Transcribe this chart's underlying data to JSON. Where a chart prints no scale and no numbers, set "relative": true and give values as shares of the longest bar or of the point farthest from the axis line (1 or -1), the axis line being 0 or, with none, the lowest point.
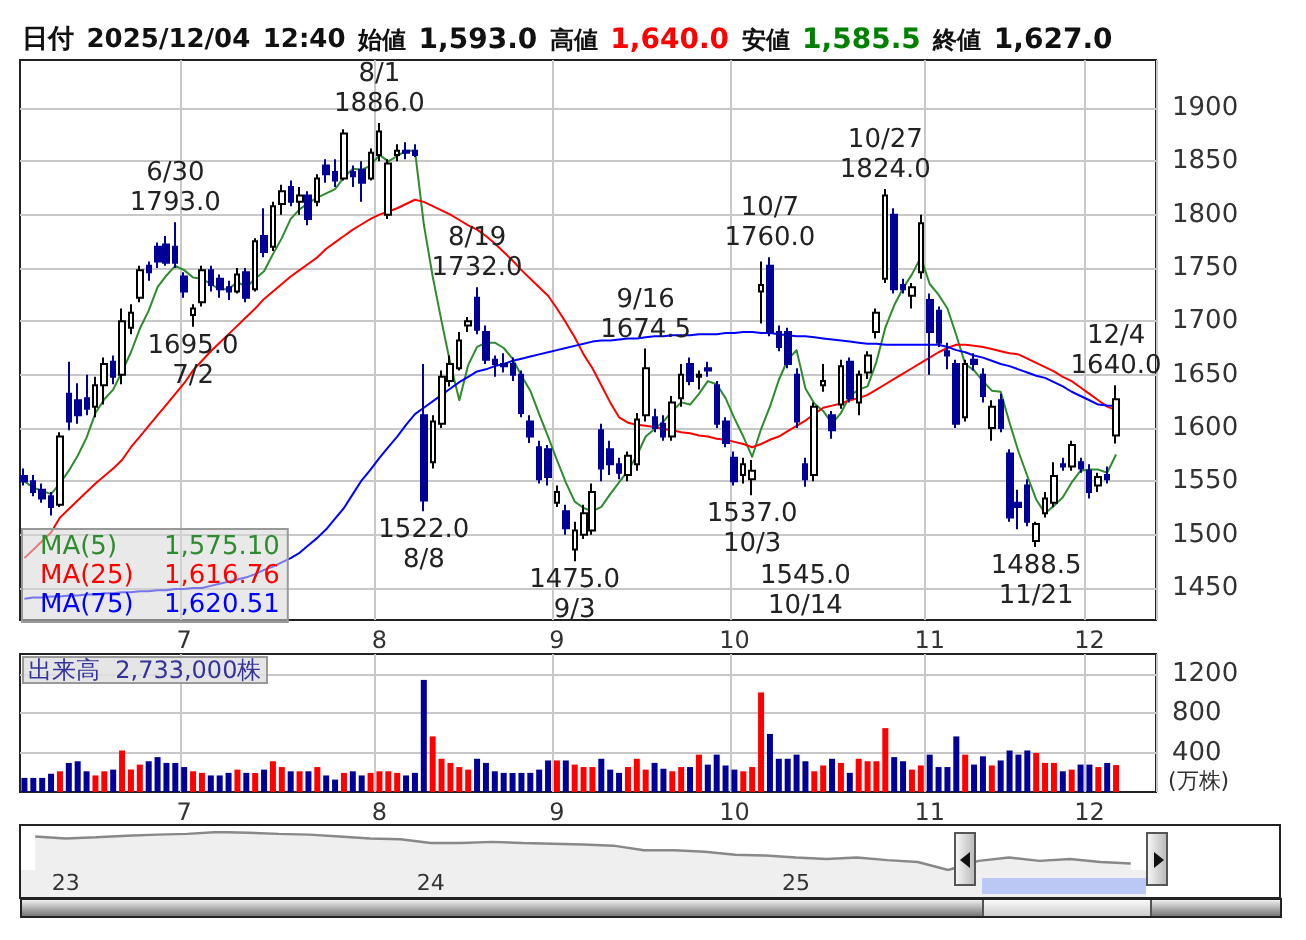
{
  "chart_data": [
    {
      "type": "candlestick",
      "title": "日付 2025/12/04 12:40 始値 1,593.0 高値 1,640.0 安値 1,585.5 終値 1,627.0",
      "categories": [
        null,
        null,
        null,
        null,
        null,
        null,
        null,
        null,
        null,
        null,
        null,
        null,
        null,
        null,
        null,
        null,
        null,
        null,
        "7",
        null,
        null,
        null,
        null,
        null,
        null,
        null,
        null,
        null,
        null,
        null,
        null,
        null,
        null,
        null,
        null,
        null,
        null,
        null,
        null,
        null,
        "8",
        null,
        null,
        null,
        null,
        null,
        null,
        null,
        null,
        null,
        null,
        null,
        null,
        null,
        null,
        null,
        null,
        null,
        null,
        null,
        "9",
        null,
        null,
        null,
        null,
        null,
        null,
        null,
        null,
        null,
        null,
        null,
        null,
        null,
        null,
        null,
        null,
        null,
        null,
        null,
        "10",
        null,
        null,
        null,
        null,
        null,
        null,
        null,
        null,
        null,
        null,
        null,
        null,
        null,
        null,
        null,
        null,
        null,
        null,
        null,
        null,
        null,
        "11",
        null,
        null,
        null,
        null,
        null,
        null,
        null,
        null,
        null,
        null,
        null,
        null,
        null,
        null,
        null,
        null,
        null,
        "12",
        null,
        null,
        null
      ],
      "ohlc": [
        [
          1555,
          1562,
          1546,
          1550
        ],
        [
          1550,
          1556,
          1536,
          1540
        ],
        [
          1542,
          1548,
          1530,
          1534
        ],
        [
          1536,
          1540,
          1518,
          1526
        ],
        [
          1528,
          1596,
          1526,
          1592
        ],
        [
          1632,
          1662,
          1598,
          1606
        ],
        [
          1626,
          1642,
          1604,
          1612
        ],
        [
          1628,
          1650,
          1612,
          1618
        ],
        [
          1620,
          1648,
          1610,
          1640
        ],
        [
          1640,
          1666,
          1622,
          1660
        ],
        [
          1662,
          1668,
          1641,
          1648
        ],
        [
          1650,
          1712,
          1641,
          1700
        ],
        [
          1694,
          1716,
          1688,
          1708
        ],
        [
          1722,
          1752,
          1718,
          1748
        ],
        [
          1752,
          1756,
          1738,
          1746
        ],
        [
          1770,
          1774,
          1750,
          1756
        ],
        [
          1772,
          1780,
          1752,
          1755
        ],
        [
          1770,
          1793,
          1750,
          1755
        ],
        [
          1742,
          1746,
          1722,
          1728
        ],
        [
          1706,
          1716,
          1695,
          1712
        ],
        [
          1718,
          1752,
          1714,
          1748
        ],
        [
          1748,
          1752,
          1728,
          1734
        ],
        [
          1740,
          1744,
          1722,
          1730
        ],
        [
          1732,
          1738,
          1720,
          1728
        ],
        [
          1728,
          1750,
          1726,
          1744
        ],
        [
          1746,
          1750,
          1718,
          1722
        ],
        [
          1730,
          1778,
          1728,
          1775
        ],
        [
          1780,
          1806,
          1760,
          1765
        ],
        [
          1770,
          1812,
          1766,
          1808
        ],
        [
          1810,
          1828,
          1800,
          1822
        ],
        [
          1826,
          1832,
          1808,
          1812
        ],
        [
          1812,
          1826,
          1800,
          1818
        ],
        [
          1818,
          1822,
          1790,
          1796
        ],
        [
          1812,
          1838,
          1808,
          1834
        ],
        [
          1846,
          1852,
          1830,
          1838
        ],
        [
          1840,
          1852,
          1826,
          1832
        ],
        [
          1834,
          1880,
          1832,
          1876
        ],
        [
          1840,
          1846,
          1826,
          1836
        ],
        [
          1842,
          1850,
          1812,
          1830
        ],
        [
          1834,
          1862,
          1832,
          1858
        ],
        [
          1856,
          1886,
          1850,
          1878
        ],
        [
          1800,
          1852,
          1796,
          1848
        ],
        [
          1856,
          1866,
          1850,
          1860
        ],
        [
          1860,
          1868,
          1852,
          1858
        ],
        [
          1860,
          1866,
          1854,
          1856
        ],
        [
          1612,
          1660,
          1522,
          1532
        ],
        [
          1568,
          1612,
          1562,
          1606
        ],
        [
          1604,
          1654,
          1600,
          1648
        ],
        [
          1644,
          1668,
          1639,
          1660
        ],
        [
          1656,
          1690,
          1654,
          1682
        ],
        [
          1696,
          1704,
          1690,
          1700
        ],
        [
          1722,
          1732,
          1688,
          1692
        ],
        [
          1690,
          1696,
          1660,
          1664
        ],
        [
          1664,
          1668,
          1648,
          1660
        ],
        [
          1660,
          1670,
          1652,
          1658
        ],
        [
          1660,
          1666,
          1644,
          1650
        ],
        [
          1650,
          1654,
          1610,
          1614
        ],
        [
          1606,
          1612,
          1586,
          1592
        ],
        [
          1582,
          1588,
          1548,
          1552
        ],
        [
          1580,
          1584,
          1546,
          1554
        ],
        [
          1530,
          1546,
          1526,
          1540
        ],
        [
          1522,
          1528,
          1500,
          1506
        ],
        [
          1486,
          1512,
          1475,
          1504
        ],
        [
          1500,
          1528,
          1496,
          1520
        ],
        [
          1504,
          1548,
          1500,
          1540
        ],
        [
          1598,
          1604,
          1550,
          1562
        ],
        [
          1580,
          1588,
          1556,
          1566
        ],
        [
          1566,
          1572,
          1552,
          1558
        ],
        [
          1556,
          1578,
          1550,
          1574
        ],
        [
          1566,
          1614,
          1560,
          1608
        ],
        [
          1612,
          1674.5,
          1606,
          1656
        ],
        [
          1610,
          1618,
          1596,
          1600
        ],
        [
          1604,
          1612,
          1588,
          1592
        ],
        [
          1592,
          1630,
          1588,
          1624
        ],
        [
          1628,
          1660,
          1620,
          1650
        ],
        [
          1660,
          1666,
          1640,
          1644
        ],
        [
          1648,
          1654,
          1636,
          1650
        ],
        [
          1656,
          1662,
          1648,
          1654
        ],
        [
          1640,
          1644,
          1600,
          1604
        ],
        [
          1606,
          1610,
          1582,
          1586
        ],
        [
          1572,
          1578,
          1546,
          1550
        ],
        [
          1556,
          1572,
          1548,
          1566
        ],
        [
          1552,
          1570,
          1537,
          1560
        ],
        [
          1728,
          1756,
          1698,
          1734
        ],
        [
          1752,
          1760,
          1686,
          1690
        ],
        [
          1690,
          1696,
          1672,
          1676
        ],
        [
          1690,
          1694,
          1656,
          1660
        ],
        [
          1650,
          1656,
          1600,
          1606
        ],
        [
          1566,
          1572,
          1545,
          1552
        ],
        [
          1556,
          1624,
          1550,
          1620
        ],
        [
          1640,
          1660,
          1634,
          1644
        ],
        [
          1612,
          1616,
          1590,
          1598
        ],
        [
          1622,
          1664,
          1618,
          1658
        ],
        [
          1662,
          1666,
          1624,
          1628
        ],
        [
          1624,
          1654,
          1612,
          1650
        ],
        [
          1652,
          1672,
          1646,
          1668
        ],
        [
          1690,
          1712,
          1684,
          1708
        ],
        [
          1740,
          1824,
          1736,
          1818
        ],
        [
          1800,
          1806,
          1726,
          1730
        ],
        [
          1734,
          1740,
          1726,
          1730
        ],
        [
          1724,
          1736,
          1712,
          1732
        ],
        [
          1746,
          1800,
          1740,
          1792
        ],
        [
          1720,
          1726,
          1650,
          1690
        ],
        [
          1710,
          1714,
          1676,
          1680
        ],
        [
          1672,
          1680,
          1655,
          1668
        ],
        [
          1660,
          1664,
          1600,
          1604
        ],
        [
          1610,
          1664,
          1606,
          1660
        ],
        [
          1664,
          1670,
          1654,
          1660
        ],
        [
          1650,
          1656,
          1624,
          1630
        ],
        [
          1600,
          1626,
          1588,
          1620
        ],
        [
          1626,
          1632,
          1596,
          1600
        ],
        [
          1576,
          1580,
          1512,
          1516
        ],
        [
          1530,
          1542,
          1505,
          1526
        ],
        [
          1546,
          1552,
          1508,
          1512
        ],
        [
          1494,
          1512,
          1488.5,
          1510
        ],
        [
          1520,
          1540,
          1516,
          1534
        ],
        [
          1530,
          1568,
          1526,
          1555
        ],
        [
          1566,
          1572,
          1560,
          1564
        ],
        [
          1564,
          1588,
          1560,
          1584
        ],
        [
          1568,
          1572,
          1558,
          1562
        ],
        [
          1560,
          1566,
          1534,
          1540
        ],
        [
          1546,
          1558,
          1540,
          1554
        ],
        [
          1556,
          1564,
          1548,
          1552
        ],
        [
          1593,
          1640,
          1585.5,
          1627
        ]
      ],
      "series": [
        {
          "type": "line",
          "name": "MA(5)",
          "color": "#2e8b2e",
          "values": [
            1550,
            1544,
            1541,
            1538,
            1548,
            1560,
            1574,
            1591,
            1614,
            1627,
            1636,
            1653,
            1671,
            1693,
            1710,
            1732,
            1743,
            1752,
            1748,
            1741,
            1740,
            1735,
            1730,
            1730,
            1737,
            1732,
            1740,
            1747,
            1763,
            1778,
            1796,
            1805,
            1811,
            1816,
            1820,
            1824,
            1835,
            1843,
            1842,
            1846,
            1856,
            1850,
            1855,
            1860,
            1860,
            1791,
            1742,
            1700,
            1660,
            1626,
            1659,
            1676,
            1680,
            1680,
            1675,
            1665,
            1649,
            1635,
            1613,
            1592,
            1570,
            1549,
            1531,
            1525,
            1522,
            1526,
            1538,
            1549,
            1560,
            1574,
            1592,
            1599,
            1606,
            1616,
            1624,
            1622,
            1632,
            1644,
            1641,
            1628,
            1609,
            1592,
            1573,
            1599,
            1620,
            1645,
            1664,
            1673,
            1637,
            1623,
            1616,
            1604,
            1614,
            1630,
            1636,
            1639,
            1662,
            1694,
            1715,
            1731,
            1744,
            1760,
            1735,
            1725,
            1712,
            1687,
            1660,
            1654,
            1644,
            1635,
            1634,
            1605,
            1578,
            1555,
            1533,
            1520,
            1527,
            1535,
            1549,
            1560,
            1561,
            1561,
            1558,
            1575.1
          ]
        },
        {
          "type": "line",
          "name": "MA(25)",
          "color": "#ff0000",
          "values": [
            1478,
            1486,
            1494,
            1502,
            1516,
            1524,
            1532,
            1540,
            1548,
            1555,
            1562,
            1570,
            1582,
            1592,
            1602,
            1612,
            1622,
            1632,
            1642,
            1654,
            1663,
            1672,
            1680,
            1688,
            1696,
            1704,
            1712,
            1721,
            1728,
            1735,
            1742,
            1748,
            1754,
            1760,
            1768,
            1774,
            1780,
            1786,
            1791,
            1796,
            1800,
            1803,
            1806,
            1810,
            1814,
            1812,
            1808,
            1804,
            1800,
            1795,
            1790,
            1786,
            1780,
            1773,
            1765,
            1757,
            1748,
            1740,
            1732,
            1724,
            1712,
            1699,
            1685,
            1669,
            1656,
            1640,
            1624,
            1610,
            1605,
            1603,
            1602,
            1601,
            1599,
            1598,
            1596,
            1595,
            1593,
            1592,
            1590,
            1589,
            1587,
            1585,
            1582,
            1585,
            1589,
            1592,
            1597,
            1602,
            1607,
            1613,
            1619,
            1621,
            1623,
            1626,
            1628,
            1631,
            1636,
            1641,
            1646,
            1651,
            1656,
            1661,
            1666,
            1671,
            1675,
            1678,
            1678,
            1677,
            1676,
            1674,
            1672,
            1670,
            1669,
            1665,
            1661,
            1657,
            1653,
            1648,
            1644,
            1638,
            1632,
            1626,
            1620,
            1616.76
          ]
        },
        {
          "type": "line",
          "name": "MA(75)",
          "color": "#0000ff",
          "values": [
            1440,
            1441,
            1441,
            1442,
            1442,
            1443,
            1443,
            1444,
            1444,
            1445,
            1445,
            1446,
            1446,
            1447,
            1447,
            1448,
            1448,
            1449,
            1449,
            1450,
            1450,
            1452,
            1454,
            1456,
            1458,
            1460,
            1463,
            1467,
            1470,
            1474,
            1478,
            1483,
            1490,
            1497,
            1505,
            1515,
            1525,
            1538,
            1551,
            1561,
            1572,
            1582,
            1592,
            1603,
            1613,
            1619,
            1625,
            1631,
            1637,
            1643,
            1648,
            1653,
            1655,
            1658,
            1660,
            1663,
            1665,
            1667,
            1669,
            1671,
            1673,
            1675,
            1677,
            1679,
            1681,
            1682,
            1682,
            1683,
            1684,
            1684,
            1685,
            1686,
            1686,
            1687,
            1687,
            1687,
            1688,
            1688,
            1688,
            1689,
            1689,
            1690,
            1690,
            1689,
            1689,
            1688,
            1687,
            1686,
            1686,
            1685,
            1684,
            1683,
            1682,
            1681,
            1680,
            1679,
            1679,
            1678,
            1678,
            1678,
            1678,
            1678,
            1678,
            1678,
            1676,
            1673,
            1671,
            1668,
            1666,
            1663,
            1660,
            1658,
            1655,
            1652,
            1649,
            1647,
            1643,
            1639,
            1634,
            1630,
            1626,
            1622,
            1621,
            1620.51
          ]
        }
      ],
      "ylim": [
        1420,
        1945
      ],
      "yticks": [
        1450,
        1500,
        1550,
        1600,
        1650,
        1700,
        1750,
        1800,
        1850,
        1900
      ],
      "grid": true,
      "legend": "bottom left",
      "marker": "none",
      "annotations": [
        "1,575.10",
        "1,616.76",
        "1,620.51",
        {
          "text": "6/30\n1793.0",
          "y": 1793
        },
        {
          "text": "1695.0\n7/2",
          "y": 1695
        },
        {
          "text": "8/1\n1886.0",
          "y": 1886
        },
        {
          "text": "1522.0\n8/8",
          "y": 1522
        },
        {
          "text": "8/19\n1732.0",
          "y": 1732
        },
        {
          "text": "1475.0\n9/3",
          "y": 1475
        },
        {
          "text": "9/16\n1674.5",
          "y": 1674.5
        },
        {
          "text": "10/7\n1760.0",
          "y": 1760
        },
        {
          "text": "1537.0\n10/3",
          "y": 1537
        },
        {
          "text": "1545.0\n10/14",
          "y": 1545
        },
        {
          "text": "10/27\n1824.0",
          "y": 1824
        },
        {
          "text": "1488.5\n11/21",
          "y": 1488.5
        },
        {
          "text": "12/4\n1640.0",
          "y": 1640
        }
      ]
    },
    {
      "type": "bar",
      "title": "出来高  2,733,000株",
      "ylabel": "(万株)",
      "categories": [
        null,
        null,
        null,
        null,
        null,
        null,
        null,
        null,
        null,
        null,
        null,
        null,
        null,
        null,
        null,
        null,
        null,
        null,
        "7",
        null,
        null,
        null,
        null,
        null,
        null,
        null,
        null,
        null,
        null,
        null,
        null,
        null,
        null,
        null,
        null,
        null,
        null,
        null,
        null,
        null,
        "8",
        null,
        null,
        null,
        null,
        null,
        null,
        null,
        null,
        null,
        null,
        null,
        null,
        null,
        null,
        null,
        null,
        null,
        null,
        null,
        "9",
        null,
        null,
        null,
        null,
        null,
        null,
        null,
        null,
        null,
        null,
        null,
        null,
        null,
        null,
        null,
        null,
        null,
        null,
        null,
        "10",
        null,
        null,
        null,
        null,
        null,
        null,
        null,
        null,
        null,
        null,
        null,
        null,
        null,
        null,
        null,
        null,
        null,
        null,
        null,
        null,
        null,
        "11",
        null,
        null,
        null,
        null,
        null,
        null,
        null,
        null,
        null,
        null,
        null,
        null,
        null,
        null,
        null,
        null,
        null,
        "12",
        null,
        null,
        null
      ],
      "values": [
        143,
        143,
        143,
        185,
        210,
        295,
        312,
        210,
        168,
        210,
        227,
        421,
        227,
        278,
        312,
        354,
        295,
        295,
        253,
        210,
        194,
        168,
        168,
        194,
        227,
        194,
        194,
        227,
        312,
        253,
        210,
        210,
        210,
        253,
        168,
        126,
        194,
        210,
        168,
        194,
        210,
        210,
        194,
        168,
        194,
        1137,
        564,
        337,
        295,
        253,
        227,
        337,
        295,
        210,
        194,
        194,
        194,
        194,
        227,
        320,
        320,
        320,
        278,
        253,
        253,
        337,
        227,
        194,
        253,
        337,
        227,
        295,
        236,
        210,
        253,
        253,
        379,
        278,
        379,
        269,
        227,
        210,
        253,
        1010,
        589,
        337,
        337,
        379,
        312,
        210,
        269,
        337,
        295,
        194,
        337,
        312,
        312,
        648,
        354,
        312,
        227,
        269,
        379,
        253,
        253,
        564,
        379,
        278,
        362,
        269,
        320,
        421,
        379,
        421,
        396,
        295,
        295,
        210,
        227,
        278,
        278,
        253,
        295,
        273
      ],
      "colors": [
        "#000099",
        "#000099",
        "#000099",
        "#000099",
        "#ff0000",
        "#000099",
        "#000099",
        "#000099",
        "#ff0000",
        "#ff0000",
        "#000099",
        "#ff0000",
        "#ff0000",
        "#ff0000",
        "#000099",
        "#000099",
        "#000099",
        "#000099",
        "#000099",
        "#ff0000",
        "#ff0000",
        "#000099",
        "#000099",
        "#000099",
        "#ff0000",
        "#000099",
        "#ff0000",
        "#000099",
        "#ff0000",
        "#ff0000",
        "#000099",
        "#ff0000",
        "#000099",
        "#ff0000",
        "#000099",
        "#000099",
        "#ff0000",
        "#000099",
        "#000099",
        "#ff0000",
        "#ff0000",
        "#ff0000",
        "#ff0000",
        "#000099",
        "#000099",
        "#000099",
        "#ff0000",
        "#ff0000",
        "#ff0000",
        "#ff0000",
        "#ff0000",
        "#000099",
        "#000099",
        "#000099",
        "#000099",
        "#000099",
        "#000099",
        "#000099",
        "#000099",
        "#000099",
        "#ff0000",
        "#000099",
        "#ff0000",
        "#ff0000",
        "#ff0000",
        "#000099",
        "#000099",
        "#000099",
        "#ff0000",
        "#ff0000",
        "#ff0000",
        "#000099",
        "#000099",
        "#ff0000",
        "#ff0000",
        "#000099",
        "#ff0000",
        "#000099",
        "#000099",
        "#000099",
        "#000099",
        "#ff0000",
        "#ff0000",
        "#ff0000",
        "#000099",
        "#000099",
        "#000099",
        "#000099",
        "#000099",
        "#ff0000",
        "#ff0000",
        "#000099",
        "#ff0000",
        "#000099",
        "#ff0000",
        "#ff0000",
        "#ff0000",
        "#ff0000",
        "#000099",
        "#000099",
        "#ff0000",
        "#ff0000",
        "#000099",
        "#000099",
        "#000099",
        "#000099",
        "#ff0000",
        "#000099",
        "#000099",
        "#ff0000",
        "#000099",
        "#000099",
        "#000099",
        "#000099",
        "#ff0000",
        "#ff0000",
        "#ff0000",
        "#000099",
        "#ff0000",
        "#000099",
        "#000099",
        "#ff0000",
        "#000099",
        "#ff0000"
      ],
      "ylim": [
        0,
        1400
      ],
      "yticks": [
        400,
        800,
        1200
      ],
      "grid": true
    },
    {
      "type": "area",
      "relative": true,
      "color": "#888888",
      "categories": [
        null,
        "23",
        null,
        null,
        null,
        null,
        null,
        null,
        null,
        null,
        null,
        null,
        null,
        "24",
        null,
        null,
        null,
        null,
        null,
        null,
        null,
        null,
        null,
        null,
        null,
        "25",
        null,
        null,
        null,
        null,
        null,
        null,
        null,
        null,
        null,
        null,
        null
      ],
      "values": [
        0.88,
        0.83,
        0.86,
        0.9,
        0.93,
        0.95,
        1,
        0.98,
        0.95,
        0.93,
        0.88,
        0.83,
        0.81,
        0.71,
        0.71,
        0.74,
        0.71,
        0.69,
        0.67,
        0.64,
        0.52,
        0.52,
        0.48,
        0.4,
        0.38,
        0.33,
        0.29,
        0.33,
        0.26,
        0.21,
        0,
        0.24,
        0.33,
        0.24,
        0.29,
        0.21,
        0.17
      ]
    }
  ]
}
